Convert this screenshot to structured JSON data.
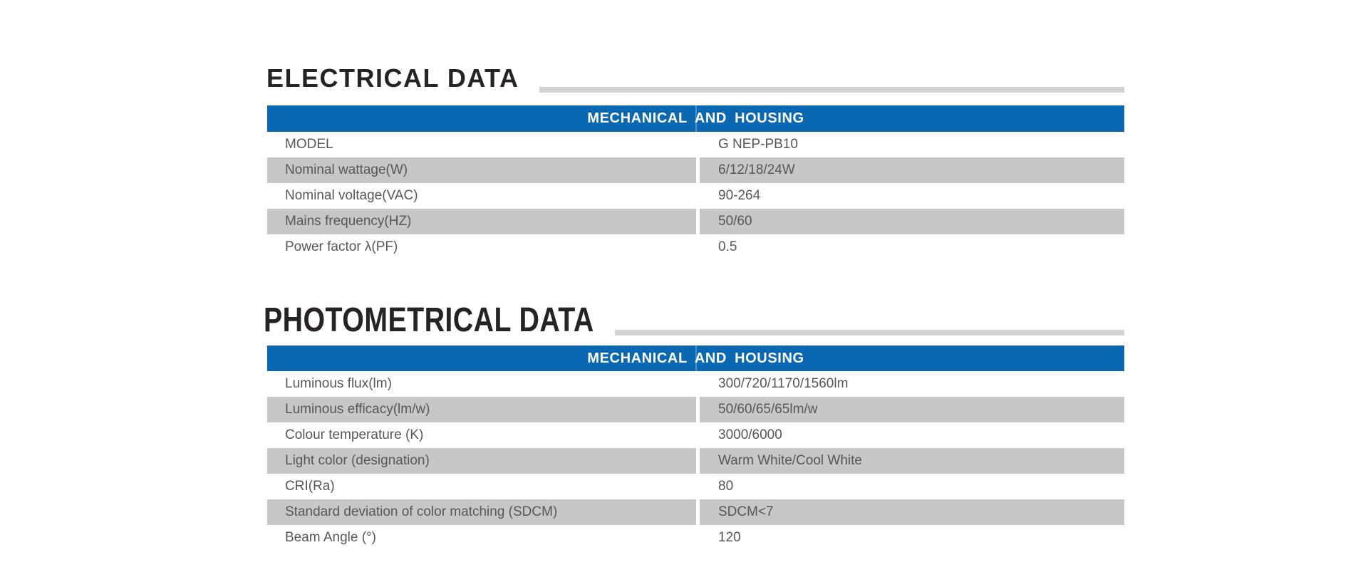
{
  "colors": {
    "header_blue": "#0a67b2",
    "row_shade_gray": "#c6c7c9",
    "title_rule_gray": "#d2d3d5",
    "title_text": "#272325",
    "body_text": "#55575b",
    "header_text": "#ffffff"
  },
  "sections": [
    {
      "id": "electrical",
      "title": "ELECTRICAL DATA",
      "header": "MECHANICAL AND HOUSING",
      "rows": [
        {
          "label": "MODEL",
          "value": "G NEP-PB10",
          "shaded": false
        },
        {
          "label": "Nominal wattage(W)",
          "value": "6/12/18/24W",
          "shaded": true
        },
        {
          "label": "Nominal voltage(VAC)",
          "value": "90-264",
          "shaded": false
        },
        {
          "label": "Mains frequency(HZ)",
          "value": "50/60",
          "shaded": true
        },
        {
          "label": "Power factor λ(PF)",
          "value": "0.5",
          "shaded": false
        }
      ]
    },
    {
      "id": "photometrical",
      "title": "PHOTOMETRICAL DATA",
      "header": "MECHANICAL AND HOUSING",
      "rows": [
        {
          "label": "Luminous flux(lm)",
          "value": "300/720/1170/1560lm",
          "shaded": false
        },
        {
          "label": "Luminous efficacy(lm/w)",
          "value": "50/60/65/65lm/w",
          "shaded": true
        },
        {
          "label": "Colour temperature (K)",
          "value": "3000/6000",
          "shaded": false
        },
        {
          "label": "Light color (designation)",
          "value": "Warm White/Cool White",
          "shaded": true
        },
        {
          "label": "CRI(Ra)",
          "value": "80",
          "shaded": false
        },
        {
          "label": "Standard deviation of color matching (SDCM)",
          "value": "SDCM<7",
          "shaded": true
        },
        {
          "label": "Beam Angle (°)",
          "value": "120",
          "shaded": false
        }
      ]
    }
  ]
}
